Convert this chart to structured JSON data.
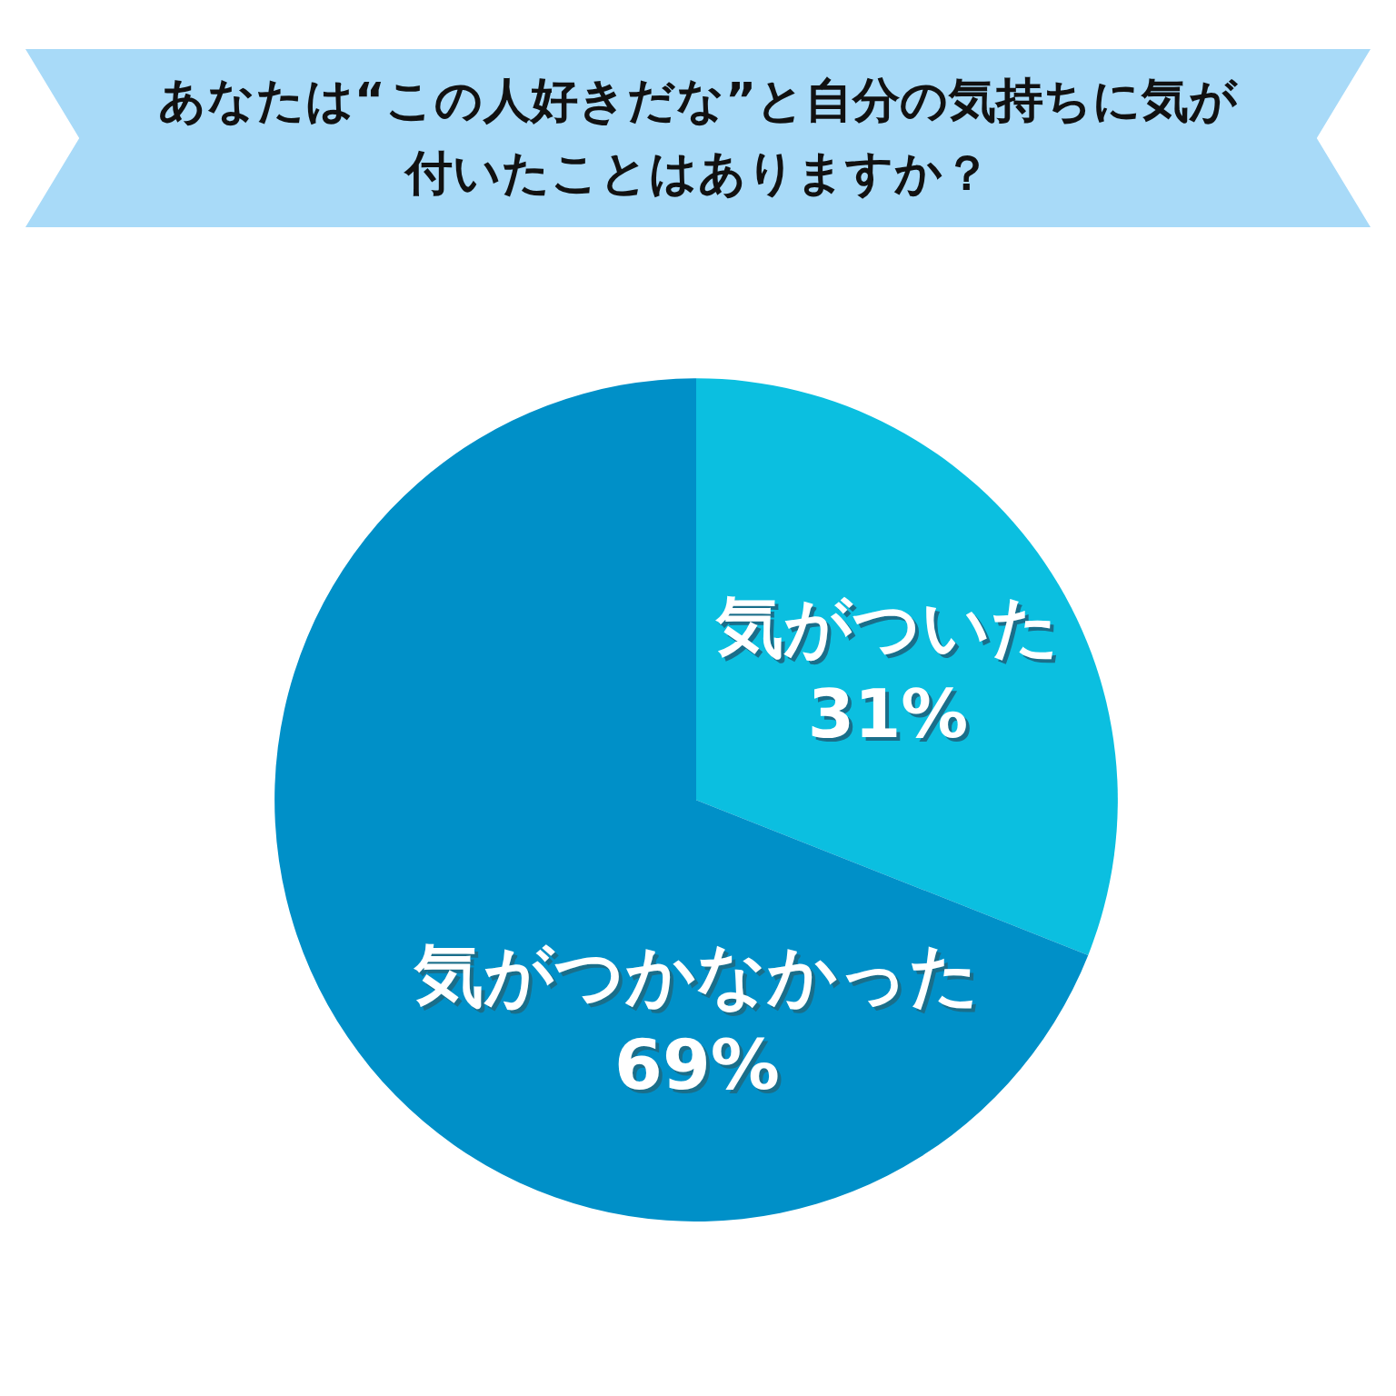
{
  "chart_data": {
    "type": "pie",
    "title": "あなたは“この人好きだな”と自分の気持ちに気が付いたことはありますか？",
    "categories": [
      "気がついた",
      "気がつかなかった"
    ],
    "values": [
      31,
      69
    ],
    "colors": [
      "#0bbfe0",
      "#0090c8"
    ],
    "value_labels": [
      "31%",
      "69%"
    ],
    "legend": false
  }
}
